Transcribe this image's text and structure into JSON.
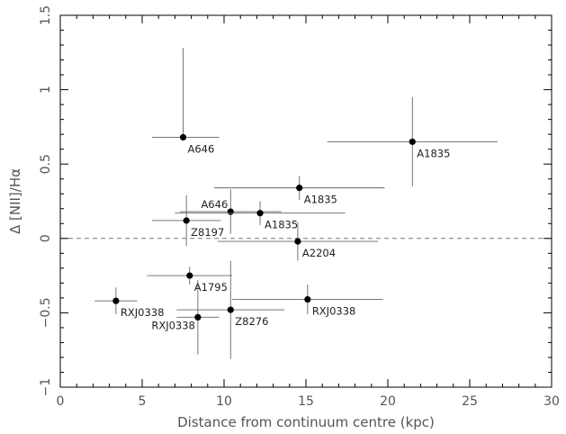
{
  "chart_data": {
    "type": "scatter",
    "title": "",
    "xlabel": "Distance from continuum centre (kpc)",
    "ylabel": "Δ [NII]/Hα",
    "xlim": [
      0,
      30
    ],
    "ylim": [
      -1,
      1.5
    ],
    "xticks": [
      "0",
      "5",
      "10",
      "15",
      "20",
      "25",
      "30"
    ],
    "yticks": [
      "−1",
      "−0.5",
      "0",
      "0.5",
      "1",
      "1.5"
    ],
    "grid": false,
    "reference_line": {
      "y": 0,
      "style": "dashed"
    },
    "points": [
      {
        "label": "A646",
        "x": 7.5,
        "y": 0.68,
        "xerr": [
          1.9,
          2.2
        ],
        "yerr": [
          0.0,
          0.6
        ],
        "label_pos": "below-right"
      },
      {
        "label": "A1835",
        "x": 21.5,
        "y": 0.65,
        "xerr": [
          5.2,
          5.2
        ],
        "yerr": [
          0.3,
          0.3
        ],
        "label_pos": "below-right"
      },
      {
        "label": "A1835",
        "x": 14.6,
        "y": 0.34,
        "xerr": [
          5.2,
          5.2
        ],
        "yerr": [
          0.08,
          0.08
        ],
        "label_pos": "below-right"
      },
      {
        "label": "A646",
        "x": 10.4,
        "y": 0.18,
        "xerr": [
          3.1,
          3.1
        ],
        "yerr": [
          0.15,
          0.15
        ],
        "label_pos": "above-left"
      },
      {
        "label": "A1835",
        "x": 12.2,
        "y": 0.17,
        "xerr": [
          5.2,
          5.2
        ],
        "yerr": [
          0.08,
          0.08
        ],
        "label_pos": "below-right"
      },
      {
        "label": "Z8197",
        "x": 7.7,
        "y": 0.12,
        "xerr": [
          2.1,
          2.1
        ],
        "yerr": [
          0.17,
          0.17
        ],
        "label_pos": "below-right"
      },
      {
        "label": "A2204",
        "x": 14.5,
        "y": -0.02,
        "xerr": [
          4.9,
          4.9
        ],
        "yerr": [
          0.13,
          0.13
        ],
        "label_pos": "below-right"
      },
      {
        "label": "A1795",
        "x": 7.9,
        "y": -0.25,
        "xerr": [
          2.6,
          2.6
        ],
        "yerr": [
          0.06,
          0.06
        ],
        "label_pos": "below-right"
      },
      {
        "label": "RXJ0338",
        "x": 3.4,
        "y": -0.42,
        "xerr": [
          1.3,
          1.3
        ],
        "yerr": [
          0.09,
          0.09
        ],
        "label_pos": "below-right"
      },
      {
        "label": "RXJ0338",
        "x": 15.1,
        "y": -0.41,
        "xerr": [
          4.6,
          4.6
        ],
        "yerr": [
          0.1,
          0.1
        ],
        "label_pos": "below-right"
      },
      {
        "label": "Z8276",
        "x": 10.4,
        "y": -0.48,
        "xerr": [
          3.3,
          3.3
        ],
        "yerr": [
          0.33,
          0.33
        ],
        "label_pos": "below-right"
      },
      {
        "label": "RXJ0338",
        "x": 8.4,
        "y": -0.53,
        "xerr": [
          1.3,
          1.3
        ],
        "yerr": [
          0.25,
          0.25
        ],
        "label_pos": "below-left"
      }
    ]
  }
}
